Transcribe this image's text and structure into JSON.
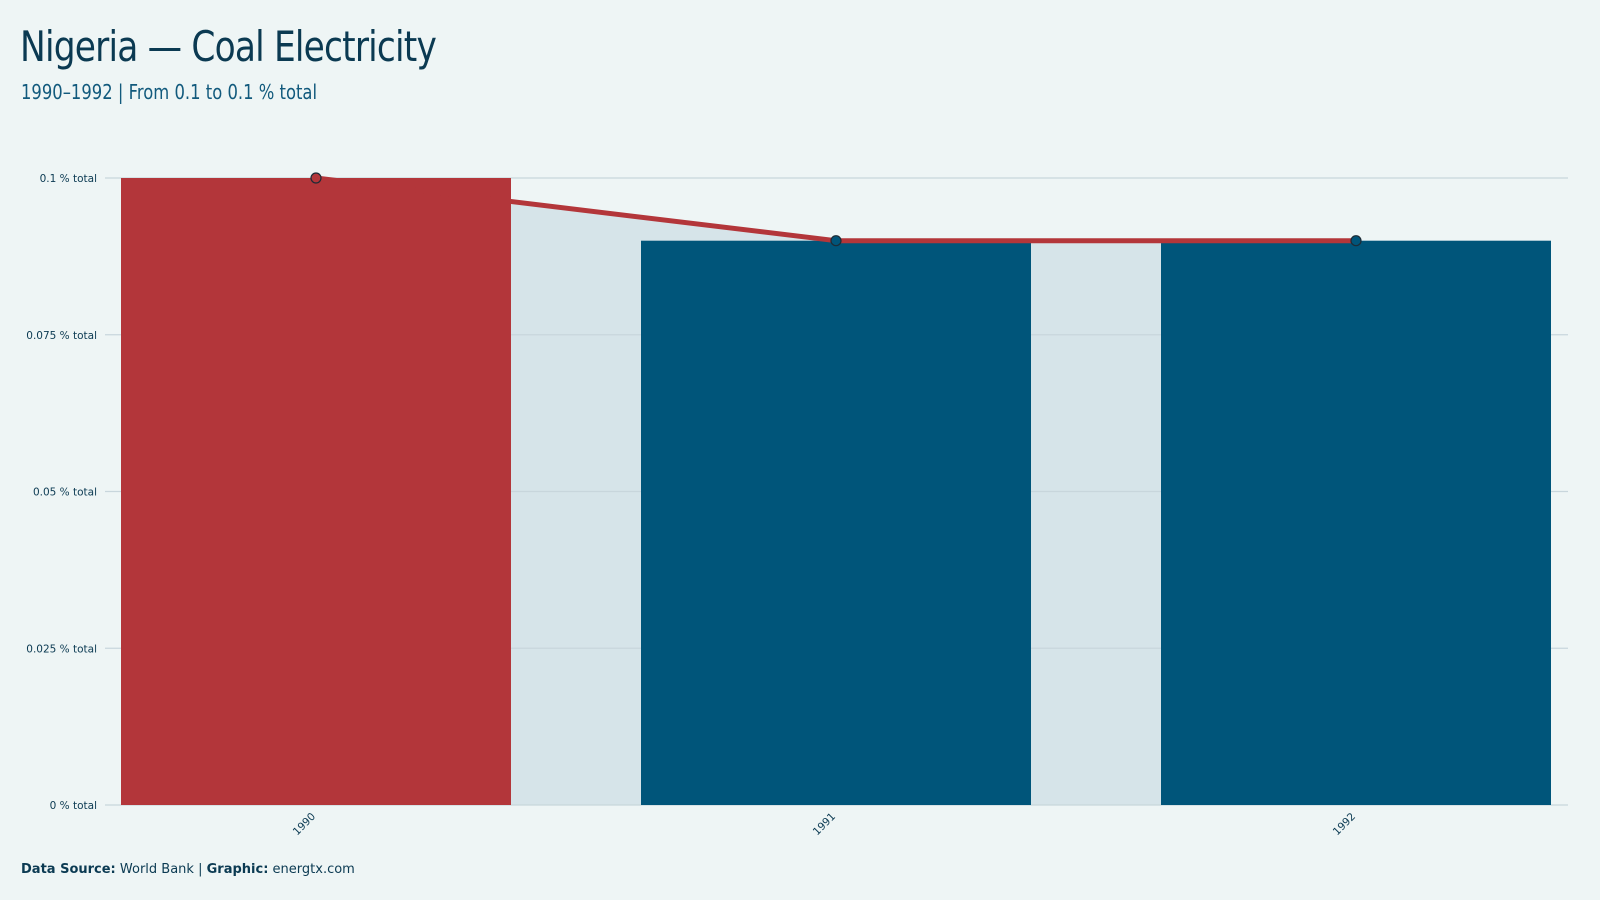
{
  "header": {
    "title": "Nigeria  — Coal Electricity",
    "subtitle": "1990–1992 | From 0.1 to 0.1 % total"
  },
  "footer": {
    "source_label": "Data Source:",
    "source_value": "World Bank",
    "separator": "|",
    "graphic_label": "Graphic:",
    "graphic_value": "energtx.com"
  },
  "colors": {
    "background": "#eef5f5",
    "highlight_bar": "#b3363a",
    "bar": "#00557a",
    "line": "#b3363a",
    "area": "#d6e4e9",
    "grid": "#c8d6dc",
    "text": "#0b3a52"
  },
  "chart_data": {
    "type": "bar",
    "categories": [
      "1990",
      "1991",
      "1992"
    ],
    "values": [
      0.1,
      0.09,
      0.09
    ],
    "highlight_index": 0,
    "overlay": "line",
    "ylim": [
      0,
      0.1
    ],
    "yticks": [
      0,
      0.025,
      0.05,
      0.075,
      0.1
    ],
    "ytick_labels": [
      "0 % total",
      "0.025 % total",
      "0.05 % total",
      "0.075 % total",
      "0.1 % total"
    ],
    "xlabel": "",
    "ylabel": "",
    "grid": true
  }
}
